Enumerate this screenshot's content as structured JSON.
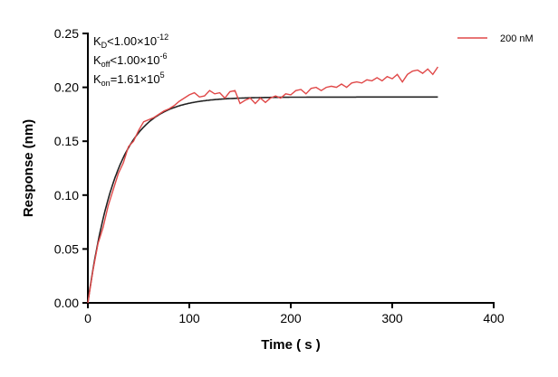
{
  "chart_data": {
    "type": "line",
    "xlabel": "Time ( s )",
    "ylabel": "Response (nm)",
    "xlim": [
      0,
      400
    ],
    "ylim": [
      0,
      0.25
    ],
    "xticks": [
      "0",
      "100",
      "200",
      "300",
      "400"
    ],
    "yticks": [
      "0.00",
      "0.05",
      "0.10",
      "0.15",
      "0.20",
      "0.25"
    ],
    "grid": false,
    "legend_position": "top-right",
    "annotations": [
      {
        "main": "K",
        "sub": "D",
        "rel": "<1.00×10",
        "sup": "-12"
      },
      {
        "main": "K",
        "sub": "off",
        "rel": "<1.00×10",
        "sup": "-6"
      },
      {
        "main": "K",
        "sub": "on",
        "rel": "=1.61×10",
        "sup": "5"
      }
    ],
    "series": [
      {
        "name": "200 nM",
        "color": "#e04848",
        "x": [
          0,
          5,
          10,
          15,
          20,
          25,
          30,
          35,
          40,
          45,
          50,
          55,
          60,
          65,
          70,
          75,
          80,
          85,
          90,
          95,
          100,
          105,
          110,
          115,
          120,
          125,
          130,
          135,
          140,
          145,
          150,
          155,
          160,
          165,
          170,
          175,
          180,
          185,
          190,
          195,
          200,
          205,
          210,
          215,
          220,
          225,
          230,
          235,
          240,
          245,
          250,
          255,
          260,
          265,
          270,
          275,
          280,
          285,
          290,
          295,
          300,
          305,
          310,
          315,
          320,
          325,
          330,
          335,
          340,
          345
        ],
        "y": [
          0.0,
          0.03,
          0.055,
          0.07,
          0.09,
          0.105,
          0.12,
          0.13,
          0.145,
          0.15,
          0.16,
          0.168,
          0.17,
          0.172,
          0.175,
          0.178,
          0.18,
          0.183,
          0.187,
          0.19,
          0.193,
          0.195,
          0.191,
          0.192,
          0.197,
          0.194,
          0.195,
          0.19,
          0.196,
          0.197,
          0.185,
          0.188,
          0.19,
          0.185,
          0.19,
          0.186,
          0.19,
          0.192,
          0.19,
          0.194,
          0.193,
          0.197,
          0.198,
          0.194,
          0.199,
          0.2,
          0.197,
          0.2,
          0.201,
          0.2,
          0.203,
          0.2,
          0.204,
          0.205,
          0.204,
          0.207,
          0.206,
          0.209,
          0.206,
          0.21,
          0.208,
          0.212,
          0.205,
          0.212,
          0.215,
          0.216,
          0.213,
          0.217,
          0.212,
          0.219
        ]
      },
      {
        "type": "fit",
        "color": "#222222",
        "plateau": 0.191,
        "rate": 0.035,
        "x_range": [
          0,
          345
        ]
      }
    ]
  }
}
